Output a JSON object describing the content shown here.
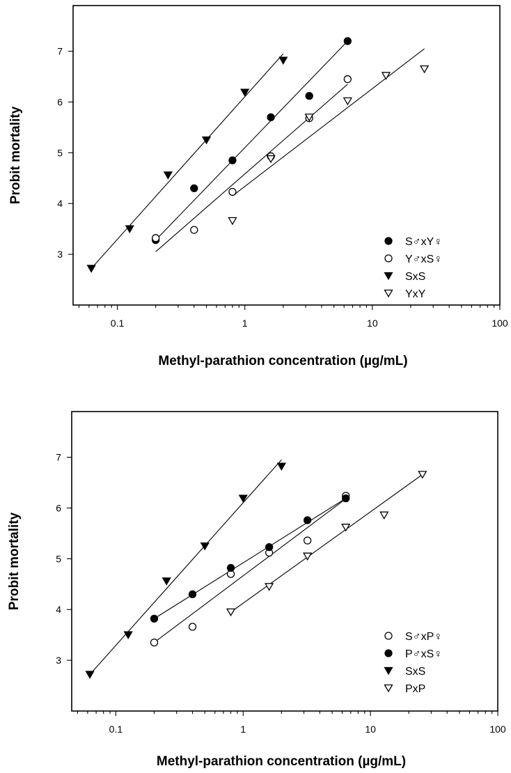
{
  "chart_data": [
    {
      "type": "scatter",
      "xscale": "log",
      "xlabel": "Methyl-parathion concentration (µg/mL)",
      "ylabel": "Probit mortality",
      "xlim": [
        0.045,
        100
      ],
      "ylim": [
        2.0,
        7.9
      ],
      "xticks": [
        "0.1",
        "1",
        "10",
        "100"
      ],
      "yticks": [
        "3",
        "4",
        "5",
        "6",
        "7"
      ],
      "legend_position": "bottom-right",
      "series": [
        {
          "name": "S♂xY♀",
          "marker": "filled-circle",
          "x": [
            0.2,
            0.4,
            0.8,
            1.6,
            3.2,
            6.4
          ],
          "y": [
            3.28,
            4.3,
            4.85,
            5.7,
            6.12,
            7.2
          ],
          "fit": {
            "x": [
              0.2,
              6.4
            ],
            "y": [
              3.28,
              7.2
            ]
          }
        },
        {
          "name": "Y♂xS♀",
          "marker": "open-circle",
          "x": [
            0.2,
            0.4,
            0.8,
            1.6,
            3.2,
            6.4
          ],
          "y": [
            3.32,
            3.48,
            4.23,
            4.93,
            5.68,
            6.45
          ],
          "fit": {
            "x": [
              0.2,
              6.4
            ],
            "y": [
              3.05,
              6.35
            ]
          }
        },
        {
          "name": "SxS",
          "marker": "filled-triangle-down",
          "x": [
            0.0625,
            0.125,
            0.25,
            0.5,
            1,
            2
          ],
          "y": [
            2.72,
            3.5,
            4.56,
            5.25,
            6.19,
            6.82
          ],
          "fit": {
            "x": [
              0.0625,
              2
            ],
            "y": [
              2.72,
              6.95
            ]
          }
        },
        {
          "name": "YxY",
          "marker": "open-triangle-down",
          "x": [
            0.8,
            1.6,
            3.2,
            6.4,
            12.8,
            25.6
          ],
          "y": [
            3.66,
            4.88,
            5.7,
            6.02,
            6.52,
            6.65
          ],
          "fit": {
            "x": [
              0.8,
              25.6
            ],
            "y": [
              4.15,
              7.05
            ]
          }
        }
      ]
    },
    {
      "type": "scatter",
      "xscale": "log",
      "xlabel": "Methyl-parathion concentration (µg/mL)",
      "ylabel": "Probit mortality",
      "xlim": [
        0.045,
        100
      ],
      "ylim": [
        2.0,
        7.9
      ],
      "xticks": [
        "0.1",
        "1",
        "10",
        "100"
      ],
      "yticks": [
        "3",
        "4",
        "5",
        "6",
        "7"
      ],
      "legend_position": "bottom-right",
      "series": [
        {
          "name": "S♂xP♀",
          "marker": "open-circle",
          "x": [
            0.2,
            0.4,
            0.8,
            1.6,
            3.2,
            6.4
          ],
          "y": [
            3.35,
            3.66,
            4.7,
            5.12,
            5.36,
            6.24
          ],
          "fit": {
            "x": [
              0.2,
              6.4
            ],
            "y": [
              3.35,
              6.18
            ]
          }
        },
        {
          "name": "P♂xS♀",
          "marker": "filled-circle",
          "x": [
            0.2,
            0.4,
            0.8,
            1.6,
            3.2,
            6.4
          ],
          "y": [
            3.82,
            4.3,
            4.82,
            5.23,
            5.76,
            6.19
          ],
          "fit": {
            "x": [
              0.2,
              6.4
            ],
            "y": [
              3.82,
              6.19
            ]
          }
        },
        {
          "name": "SxS",
          "marker": "filled-triangle-down",
          "x": [
            0.0625,
            0.125,
            0.25,
            0.5,
            1,
            2
          ],
          "y": [
            2.72,
            3.5,
            4.56,
            5.25,
            6.19,
            6.82
          ],
          "fit": {
            "x": [
              0.0625,
              2
            ],
            "y": [
              2.72,
              6.95
            ]
          }
        },
        {
          "name": "PxP",
          "marker": "open-triangle-down",
          "x": [
            0.8,
            1.6,
            3.2,
            6.4,
            12.8,
            25.6
          ],
          "y": [
            3.95,
            4.45,
            5.05,
            5.62,
            5.86,
            6.66
          ],
          "fit": {
            "x": [
              0.8,
              25.6
            ],
            "y": [
              3.95,
              6.66
            ]
          }
        }
      ]
    }
  ]
}
